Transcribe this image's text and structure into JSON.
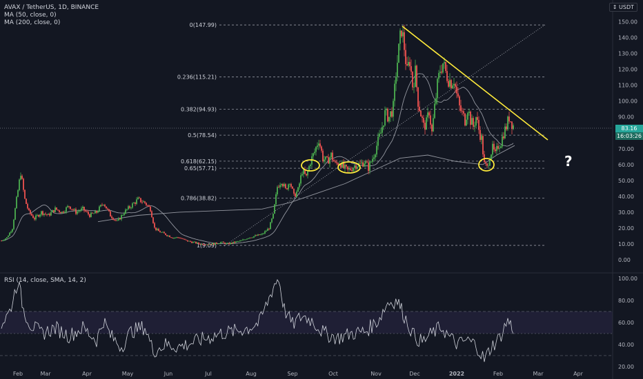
{
  "header": {
    "title": "AVAX / TetherUS, 1D, BINANCE",
    "ma50": "MA (50, close, 0)",
    "ma200": "MA (200, close, 0)",
    "currency": "USDT"
  },
  "last_price": {
    "value": "83.16",
    "countdown": "16:03:26"
  },
  "annotation_text": "?",
  "rsi_label": "RSI (14, close, SMA, 14, 2)",
  "colors": {
    "background": "#131722",
    "up": "#4caf50",
    "down": "#ef5350",
    "trendline": "#ffeb3b",
    "circle": "#ffeb3b",
    "ma": "#9598a1",
    "rsi_line": "#d1d4dc",
    "rsi_band": "#7e57c2"
  },
  "chart_data": {
    "type": "candlestick",
    "x_ticks": [
      "Feb",
      "Mar",
      "Apr",
      "May",
      "Jun",
      "Jul",
      "Aug",
      "Sep",
      "Oct",
      "Nov",
      "Dec",
      "2022",
      "Feb",
      "Mar",
      "Apr"
    ],
    "y_ticks": [
      0,
      10,
      20,
      30,
      40,
      50,
      60,
      70,
      80,
      90,
      100,
      110,
      120,
      130,
      140,
      150
    ],
    "ylim": [
      -5,
      155
    ],
    "fib_levels": [
      {
        "label": "0(147.99)",
        "value": 147.99
      },
      {
        "label": "0.236(115.21)",
        "value": 115.21
      },
      {
        "label": "0.382(94.93)",
        "value": 94.93
      },
      {
        "label": "0.5(78.54)",
        "value": 78.54
      },
      {
        "label": "0.618(62.15)",
        "value": 62.15
      },
      {
        "label": "0.65(57.71)",
        "value": 57.71
      },
      {
        "label": "0.786(38.82)",
        "value": 38.82
      },
      {
        "label": "1(9.09)",
        "value": 9.09
      }
    ],
    "price_path": [
      {
        "month": "Feb 2021",
        "close": 12
      },
      {
        "month": "Feb 2021",
        "close": 55
      },
      {
        "month": "Mar 2021",
        "close": 28
      },
      {
        "month": "Apr 2021",
        "close": 33
      },
      {
        "month": "May 2021",
        "close": 38
      },
      {
        "month": "Jun 2021",
        "close": 14
      },
      {
        "month": "Jul 2021",
        "close": 11
      },
      {
        "month": "Aug 2021",
        "close": 16
      },
      {
        "month": "Sep 2021",
        "close": 60
      },
      {
        "month": "Oct 2021",
        "close": 55
      },
      {
        "month": "Nov 2021",
        "close": 147.99
      },
      {
        "month": "Dec 2021",
        "close": 80
      },
      {
        "month": "Jan 2022",
        "close": 110
      },
      {
        "month": "Feb 2022",
        "close": 57
      },
      {
        "month": "Feb 2022",
        "close": 83.16
      }
    ],
    "last_price": 83.16,
    "rsi": {
      "y_ticks": [
        20,
        40,
        60,
        80,
        100
      ],
      "ylim": [
        20,
        100
      ],
      "bands": [
        30,
        70
      ],
      "midline": 50
    }
  }
}
